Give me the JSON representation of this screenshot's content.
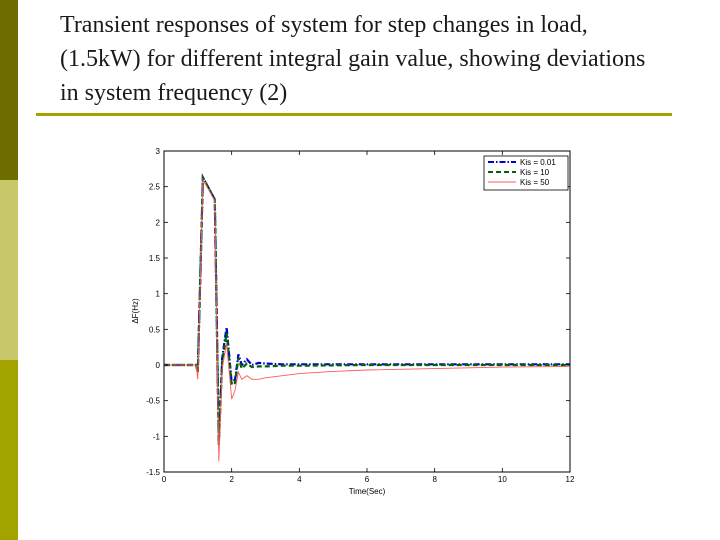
{
  "slide": {
    "title": "Transient responses of system for step changes in load,  (1.5kW) for different integral gain value, showing deviations in system frequency (2)",
    "accent_color": "#a3a300"
  },
  "chart_data": {
    "type": "line",
    "title": "",
    "xlabel": "Time(Sec)",
    "ylabel": "ΔF(Hz)",
    "xlim": [
      0,
      12
    ],
    "ylim": [
      -1.5,
      3
    ],
    "xticks": [
      0,
      2,
      4,
      6,
      8,
      10,
      12
    ],
    "yticks": [
      -1.5,
      -1,
      -0.5,
      0,
      0.5,
      1,
      1.5,
      2,
      2.5,
      3
    ],
    "grid": false,
    "legend_position": "top-right",
    "series": [
      {
        "name": "Kis = 0.01",
        "color": "#0000cc",
        "dash": "dash-dot",
        "x": [
          0,
          0.95,
          1.0,
          1.15,
          1.5,
          1.62,
          1.72,
          1.85,
          2.0,
          2.1,
          2.2,
          2.3,
          2.45,
          2.6,
          2.8,
          3.0,
          3.5,
          4,
          6,
          8,
          10,
          12
        ],
        "y": [
          0,
          0,
          -0.1,
          2.63,
          2.32,
          -1.1,
          0.1,
          0.53,
          -0.25,
          -0.2,
          0.15,
          0.0,
          0.08,
          0.0,
          0.03,
          0.02,
          0.01,
          0.01,
          0.01,
          0.01,
          0.01,
          0.01
        ]
      },
      {
        "name": "Kis = 10",
        "color": "#006400",
        "dash": "dashed",
        "x": [
          0,
          0.95,
          1.0,
          1.15,
          1.5,
          1.62,
          1.72,
          1.85,
          2.0,
          2.1,
          2.2,
          2.3,
          2.45,
          2.6,
          2.8,
          3.0,
          3.5,
          4,
          6,
          8,
          10,
          12
        ],
        "y": [
          0,
          0,
          -0.1,
          2.63,
          2.32,
          -1.12,
          0.05,
          0.45,
          -0.28,
          -0.25,
          0.1,
          -0.05,
          0.02,
          -0.03,
          -0.02,
          -0.02,
          -0.01,
          -0.01,
          0.0,
          0.0,
          0.0,
          0.0
        ]
      },
      {
        "name": "Kis = 50",
        "color": "#ff5a5a",
        "dash": "solid",
        "x": [
          0,
          0.95,
          1.0,
          1.15,
          1.5,
          1.62,
          1.72,
          1.85,
          2.0,
          2.1,
          2.2,
          2.3,
          2.45,
          2.6,
          2.8,
          3.0,
          3.5,
          4,
          5,
          6,
          8,
          10,
          12
        ],
        "y": [
          0,
          0,
          -0.2,
          2.6,
          2.3,
          -1.35,
          -0.05,
          0.3,
          -0.48,
          -0.35,
          -0.1,
          -0.2,
          -0.15,
          -0.2,
          -0.2,
          -0.18,
          -0.15,
          -0.12,
          -0.09,
          -0.07,
          -0.05,
          -0.03,
          -0.02
        ]
      }
    ]
  }
}
